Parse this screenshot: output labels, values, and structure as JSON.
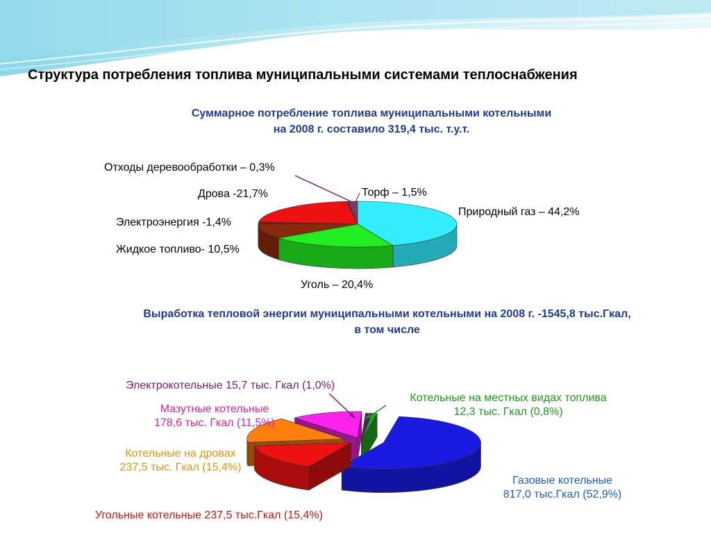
{
  "title": "Структура потребления топлива муниципальными системами теплоснабжения",
  "chart_data": [
    {
      "type": "pie",
      "title": [
        "Суммарное потребление топлива муниципальными котельными",
        "на 2008 г. составило 319,4 тыс. т.у.т."
      ],
      "slices": [
        {
          "label": "Природный газ – 44,2%",
          "value": 44.2,
          "color": "#33EEFF"
        },
        {
          "label": "Уголь – 20,4%",
          "value": 20.4,
          "color": "#22EE22"
        },
        {
          "label": "Жидкое топливо- 10,5%",
          "value": 10.5,
          "color": "#8B2A0A"
        },
        {
          "label": "Электроэнергия -1,4%",
          "value": 1.4,
          "color": "#7B1A08"
        },
        {
          "label": "Дрова -21,7%",
          "value": 21.7,
          "color": "#EE1111"
        },
        {
          "label": "Отходы деревообработки – 0,3%",
          "value": 0.3,
          "color": "#444444"
        },
        {
          "label": "Торф – 1,5%",
          "value": 1.5,
          "color": "#7A3A6A"
        }
      ]
    },
    {
      "type": "pie",
      "title": [
        "Выработка тепловой энергии муниципальными котельными на 2008 г.  -1545,8 тыс.Гкал,",
        "в том числе"
      ],
      "slices": [
        {
          "label": [
            "Газовые котельные",
            "817,0 тыс.Гкал (52,9%)"
          ],
          "value": 52.9,
          "color": "#1A1AE0",
          "label_color": "#1A5CC8"
        },
        {
          "label": [
            "Угольные котельные 237,5 тыс.Гкал (15,4%)"
          ],
          "value": 15.4,
          "color": "#EE1111",
          "label_color": "#CC1111"
        },
        {
          "label": [
            "Котельные на дровах",
            "237,5 тыс. Гкал (15,4%)"
          ],
          "value": 15.4,
          "color": "#FF7F0E",
          "label_color": "#E8900A"
        },
        {
          "label": [
            "Мазутные котельные",
            "178,6 тыс. Гкал (11,5%)"
          ],
          "value": 11.5,
          "color": "#FF22EE",
          "label_color": "#E0209A"
        },
        {
          "label": [
            "Электрокотельные 15,7 тыс. Гкал (1,0%)"
          ],
          "value": 1.0,
          "color": "#5A1A5A",
          "label_color": "#7A1A7A"
        },
        {
          "label": [
            "Котельные на местных видах топлива",
            "12,3 тыс. Гкал (0,8%)"
          ],
          "value": 0.8,
          "color": "#22AA22",
          "label_color": "#1A9A1A"
        }
      ]
    }
  ]
}
